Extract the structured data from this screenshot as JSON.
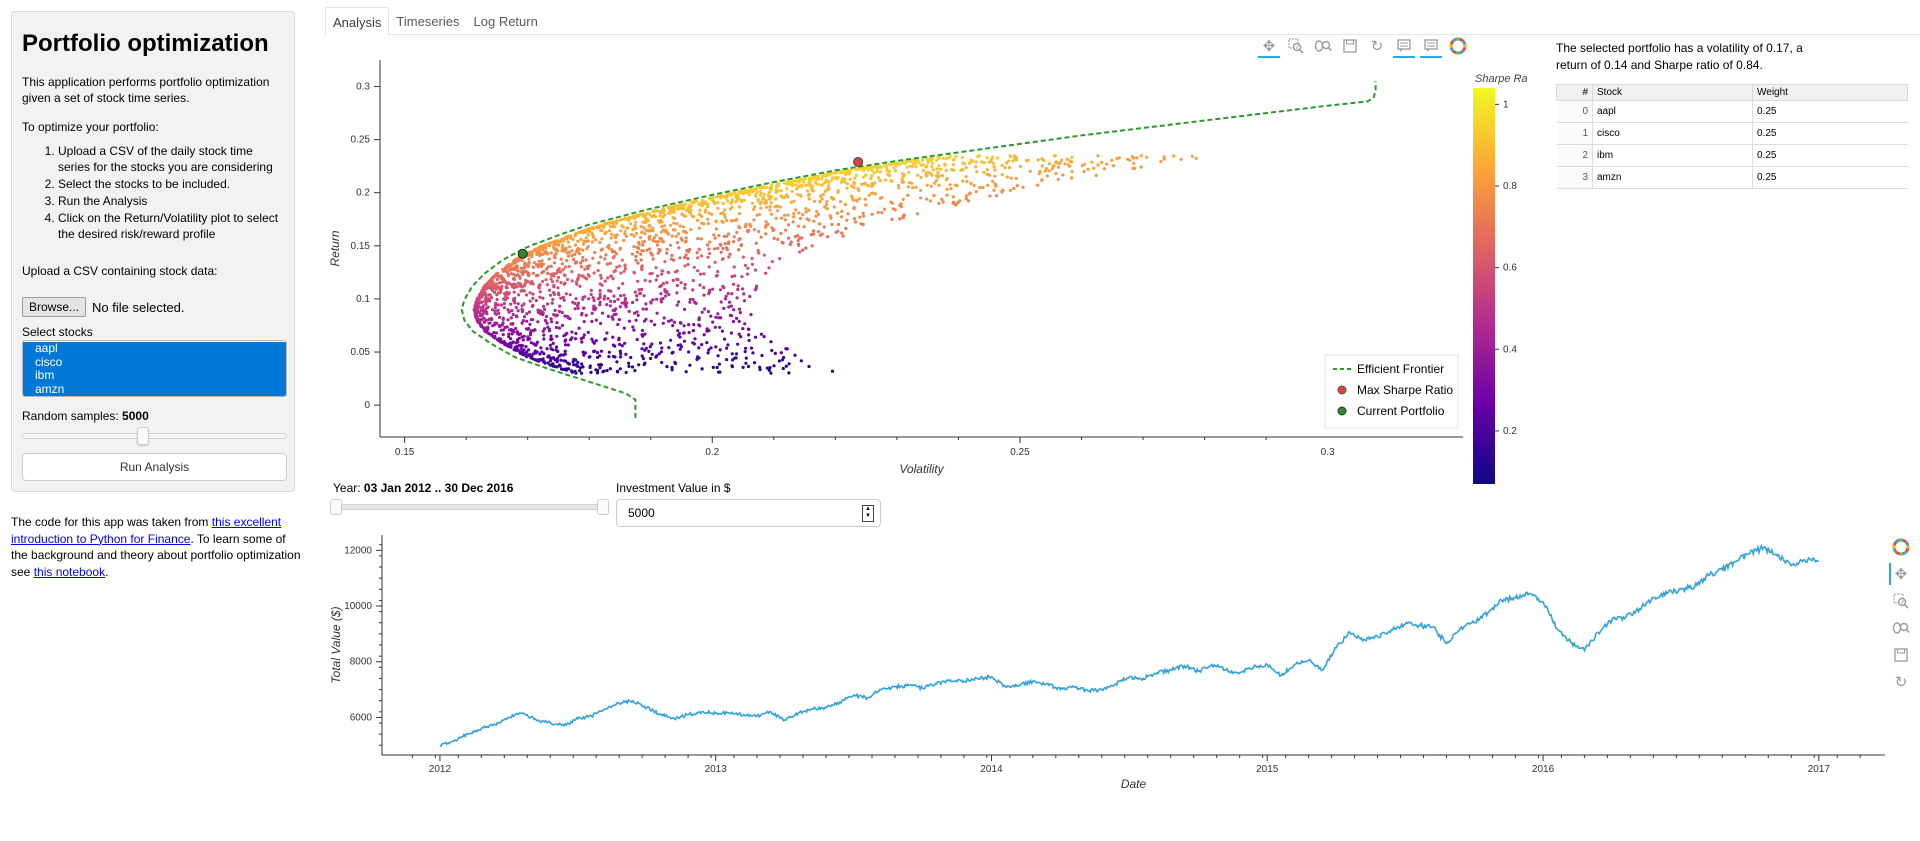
{
  "sidebar": {
    "title": "Portfolio optimization",
    "intro": "This application performs portfolio optimization given a set of stock time series.",
    "howto": "To optimize your portfolio:",
    "steps": [
      "Upload a CSV of the daily stock time series for the stocks you are considering",
      "Select the stocks to be included.",
      "Run the Analysis",
      "Click on the Return/Volatility plot to select the desired risk/reward profile"
    ],
    "upload_label": "Upload a CSV containing stock data:",
    "browse_label": "Browse...",
    "file_status": "No file selected.",
    "select_label": "Select stocks",
    "stocks": [
      "aapl",
      "cisco",
      "ibm",
      "amzn"
    ],
    "samples_label": "Random samples: ",
    "samples_value": "5000",
    "samples_fraction": 0.45,
    "run_label": "Run Analysis"
  },
  "credit": {
    "pre": "The code for this app was taken from ",
    "link1": "this excellent introduction to Python for Finance",
    "mid": ". To learn some of the background and theory about portfolio optimization see ",
    "link2": "this notebook",
    "post": "."
  },
  "tabs": [
    {
      "label": "Analysis",
      "active": true
    },
    {
      "label": "Timeseries",
      "active": false
    },
    {
      "label": "Log Return",
      "active": false
    }
  ],
  "info": {
    "text": "The selected portfolio has a volatility of 0.17, a return of 0.14 and Sharpe ratio of 0.84.",
    "columns": [
      "#",
      "Stock",
      "Weight"
    ],
    "rows": [
      {
        "idx": "0",
        "stock": "aapl",
        "weight": "0.25"
      },
      {
        "idx": "1",
        "stock": "cisco",
        "weight": "0.25"
      },
      {
        "idx": "2",
        "stock": "ibm",
        "weight": "0.25"
      },
      {
        "idx": "3",
        "stock": "amzn",
        "weight": "0.25"
      }
    ]
  },
  "controls": {
    "year_label": "Year: ",
    "year_value": "03 Jan 2012 .. 30 Dec 2016",
    "investment_label": "Investment Value in $",
    "investment_value": "5000"
  },
  "colors": {
    "frontier": "#2a9a2a",
    "max_sharpe": "#e0443a",
    "current": "#2e8b2e",
    "line": "#30a2da",
    "accent": "#0078d7"
  },
  "icons": {
    "top_toolbar": [
      "pan-icon",
      "box-zoom-icon",
      "wheel-zoom-icon",
      "save-icon",
      "reset-icon",
      "hover-icon",
      "hover-alt-icon",
      "bokeh-logo-icon"
    ],
    "side_toolbar": [
      "bokeh-logo-icon",
      "pan-icon",
      "box-zoom-icon",
      "wheel-zoom-icon",
      "save-icon",
      "reset-icon"
    ]
  },
  "chart_data": [
    {
      "type": "scatter",
      "title": "",
      "xlabel": "Volatility",
      "ylabel": "Return",
      "xlim": [
        0.146,
        0.322
      ],
      "ylim": [
        -0.03,
        0.325
      ],
      "xticks": [
        "0.15",
        "0.2",
        "0.25",
        "0.3"
      ],
      "yticks": [
        "0",
        "0.05",
        "0.1",
        "0.15",
        "0.2",
        "0.25",
        "0.3"
      ],
      "colorbar": {
        "title": "Sharpe Ra",
        "ticks": [
          "0.2",
          "0.4",
          "0.6",
          "0.8",
          "1"
        ],
        "range": [
          0.07,
          1.04
        ],
        "palette": "plasma"
      },
      "legend": {
        "position": "bottom-right",
        "entries": [
          "Efficient Frontier",
          "Max Sharpe Ratio",
          "Current Portfolio"
        ]
      },
      "series": [
        {
          "name": "Efficient Frontier",
          "x": [
            0.1875,
            0.1875,
            0.186,
            0.18,
            0.174,
            0.168,
            0.164,
            0.161,
            0.1597,
            0.1593,
            0.1597,
            0.161,
            0.163,
            0.166,
            0.17,
            0.175,
            0.18,
            0.19,
            0.2,
            0.21,
            0.22,
            0.23,
            0.24,
            0.25,
            0.26,
            0.27,
            0.28,
            0.29,
            0.3,
            0.3065,
            0.3075,
            0.3078,
            0.3078
          ],
          "y": [
            -0.012,
            0.005,
            0.011,
            0.022,
            0.033,
            0.045,
            0.058,
            0.07,
            0.08,
            0.09,
            0.099,
            0.112,
            0.124,
            0.137,
            0.149,
            0.16,
            0.17,
            0.185,
            0.198,
            0.21,
            0.221,
            0.23,
            0.238,
            0.246,
            0.254,
            0.261,
            0.268,
            0.275,
            0.282,
            0.286,
            0.29,
            0.297,
            0.305
          ]
        },
        {
          "name": "Max Sharpe Ratio",
          "x": [
            0.2237
          ],
          "y": [
            0.229
          ]
        },
        {
          "name": "Current Portfolio",
          "x": [
            0.1692
          ],
          "y": [
            0.1425
          ]
        }
      ],
      "scatter_samples": 5000
    },
    {
      "type": "line",
      "title": "",
      "xlabel": "Date",
      "ylabel": "Total Value ($)",
      "xlim": [
        2011.79,
        2017.24
      ],
      "ylim": [
        4650,
        12550
      ],
      "xticks": [
        "2012",
        "2013",
        "2014",
        "2015",
        "2016",
        "2017"
      ],
      "yticks": [
        "6000",
        "8000",
        "10000",
        "12000"
      ],
      "series": [
        {
          "name": "",
          "x": [
            2012.0,
            2012.05,
            2012.1,
            2012.15,
            2012.2,
            2012.25,
            2012.3,
            2012.35,
            2012.4,
            2012.45,
            2012.5,
            2012.55,
            2012.6,
            2012.65,
            2012.7,
            2012.75,
            2012.8,
            2012.85,
            2012.9,
            2012.95,
            2013.0,
            2013.05,
            2013.1,
            2013.15,
            2013.2,
            2013.25,
            2013.3,
            2013.35,
            2013.4,
            2013.45,
            2013.5,
            2013.55,
            2013.6,
            2013.65,
            2013.7,
            2013.75,
            2013.8,
            2013.85,
            2013.9,
            2013.95,
            2014.0,
            2014.05,
            2014.1,
            2014.15,
            2014.2,
            2014.25,
            2014.3,
            2014.35,
            2014.4,
            2014.45,
            2014.5,
            2014.55,
            2014.6,
            2014.65,
            2014.7,
            2014.75,
            2014.8,
            2014.85,
            2014.9,
            2014.95,
            2015.0,
            2015.05,
            2015.1,
            2015.15,
            2015.2,
            2015.25,
            2015.3,
            2015.35,
            2015.4,
            2015.45,
            2015.5,
            2015.55,
            2015.6,
            2015.65,
            2015.7,
            2015.75,
            2015.8,
            2015.85,
            2015.9,
            2015.95,
            2016.0,
            2016.05,
            2016.1,
            2016.15,
            2016.2,
            2016.25,
            2016.3,
            2016.35,
            2016.4,
            2016.45,
            2016.5,
            2016.55,
            2016.6,
            2016.65,
            2016.7,
            2016.75,
            2016.8,
            2016.85,
            2016.9,
            2016.95,
            2017.0
          ],
          "y": [
            5000,
            5150,
            5400,
            5600,
            5750,
            6000,
            6150,
            5900,
            5800,
            5700,
            5950,
            6050,
            6300,
            6500,
            6600,
            6350,
            6100,
            5950,
            6100,
            6200,
            6150,
            6150,
            6100,
            6050,
            6200,
            5900,
            6150,
            6300,
            6350,
            6550,
            6800,
            6700,
            7000,
            7100,
            7150,
            7050,
            7200,
            7350,
            7300,
            7400,
            7450,
            7100,
            7150,
            7300,
            7200,
            7000,
            7100,
            6950,
            7000,
            7200,
            7450,
            7400,
            7600,
            7700,
            7850,
            7650,
            7900,
            7700,
            7600,
            7800,
            7900,
            7500,
            7900,
            8050,
            7700,
            8500,
            9050,
            8800,
            8900,
            9150,
            9350,
            9300,
            9250,
            8650,
            9200,
            9400,
            9750,
            10200,
            10300,
            10450,
            10150,
            9200,
            8700,
            8400,
            9050,
            9500,
            9600,
            9900,
            10300,
            10450,
            10600,
            10700,
            11100,
            11300,
            11600,
            11900,
            12100,
            11800,
            11450,
            11650,
            11600
          ]
        }
      ]
    }
  ]
}
